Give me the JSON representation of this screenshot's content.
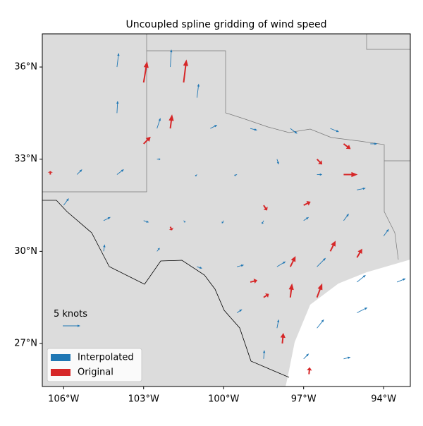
{
  "chart_data": {
    "type": "quiver",
    "title": "Uncoupled spline gridding of wind speed",
    "xlim": [
      -106.8,
      -93.0
    ],
    "ylim": [
      25.6,
      37.08
    ],
    "xticks": [
      {
        "value": -106,
        "label": "106°W"
      },
      {
        "value": -103,
        "label": "103°W"
      },
      {
        "value": -100,
        "label": "100°W"
      },
      {
        "value": -97,
        "label": "97°W"
      },
      {
        "value": -94,
        "label": "94°W"
      }
    ],
    "yticks": [
      {
        "value": 27,
        "label": "27°N"
      },
      {
        "value": 30,
        "label": "30°N"
      },
      {
        "value": 33,
        "label": "33°N"
      },
      {
        "value": 36,
        "label": "36°N"
      }
    ],
    "key": {
      "value": 5,
      "label": "5 knots"
    },
    "legend": "lower left",
    "series": [
      {
        "name": "Interpolated",
        "color": "#1f77b4",
        "lon": [
          -104,
          -103,
          -102,
          -101,
          -104,
          -102.5,
          -100.5,
          -99,
          -97.5,
          -96,
          -94.5,
          -105.5,
          -104,
          -102.5,
          -101,
          -99.5,
          -98,
          -96.5,
          -95,
          -106,
          -104.5,
          -103,
          -101.5,
          -100,
          -98.5,
          -97,
          -95.5,
          -94,
          -104.5,
          -102.5,
          -101,
          -99.5,
          -98,
          -96.5,
          -95,
          -93.5,
          -99.5,
          -98,
          -96.5,
          -95,
          -98.5,
          -97,
          -95.5
        ],
        "lat": [
          36,
          35.5,
          36,
          35,
          34.5,
          34,
          34,
          34,
          34,
          34,
          33.5,
          32.5,
          32.5,
          33,
          32.5,
          32.5,
          33,
          32.5,
          32,
          31.5,
          31,
          31,
          31,
          31,
          31,
          31,
          31,
          30.5,
          30,
          30,
          29.5,
          29.5,
          29.5,
          29.5,
          29,
          29,
          28,
          27.5,
          27.5,
          28,
          26.5,
          26.5,
          26.5
        ],
        "u": [
          0.5,
          0.8,
          0.3,
          0.5,
          0.2,
          1,
          2,
          2,
          2,
          2.5,
          2,
          1.5,
          2,
          1,
          -0.5,
          -0.8,
          0.5,
          1.5,
          2.5,
          1.5,
          2,
          1.5,
          0.5,
          -0.5,
          -0.5,
          1.5,
          1.5,
          1.5,
          0.3,
          0.8,
          1.5,
          2,
          2.5,
          2.5,
          2.5,
          2.5,
          1.5,
          0.5,
          2,
          3,
          0.2,
          1.5,
          2
        ],
        "v": [
          4,
          4.5,
          5,
          4,
          3.5,
          3,
          1,
          -0.5,
          -1.5,
          -1,
          0,
          1.5,
          1.5,
          0,
          -0.5,
          -0.3,
          -1.5,
          0,
          0.5,
          2,
          1,
          -0.5,
          -0.5,
          -0.8,
          -1,
          1,
          2,
          2,
          2,
          1,
          -0.5,
          0.5,
          1.5,
          2.5,
          2,
          1,
          1,
          2.5,
          2.5,
          1.5,
          2.5,
          1.5,
          0.5
        ]
      },
      {
        "name": "Original",
        "color": "#d62728",
        "lon": [
          -103,
          -101.5,
          -102,
          -103,
          -96.5,
          -95.5,
          -95.5,
          -98.5,
          -97,
          -102,
          -97.5,
          -96,
          -95,
          -97.5,
          -96.5,
          -98.5,
          -97.8,
          -96.8,
          -106.5,
          -99
        ],
        "lat": [
          35.5,
          35.5,
          34,
          33.5,
          33,
          33.5,
          32.5,
          31.5,
          31.5,
          30.8,
          29.5,
          30,
          29.8,
          28.5,
          28.5,
          28.5,
          27,
          26,
          32.5,
          29
        ],
        "u": [
          1,
          0.8,
          0.5,
          2,
          1.5,
          2,
          4,
          1,
          2,
          0.5,
          1.5,
          1.5,
          1.5,
          0.5,
          1.5,
          1.5,
          0.3,
          0.2,
          0,
          2
        ],
        "v": [
          6,
          6.5,
          4,
          2,
          -1.5,
          -1.5,
          0,
          -1.5,
          1,
          -1,
          3,
          3,
          2.5,
          4,
          4,
          1,
          3,
          2,
          1,
          0.5
        ]
      }
    ]
  }
}
